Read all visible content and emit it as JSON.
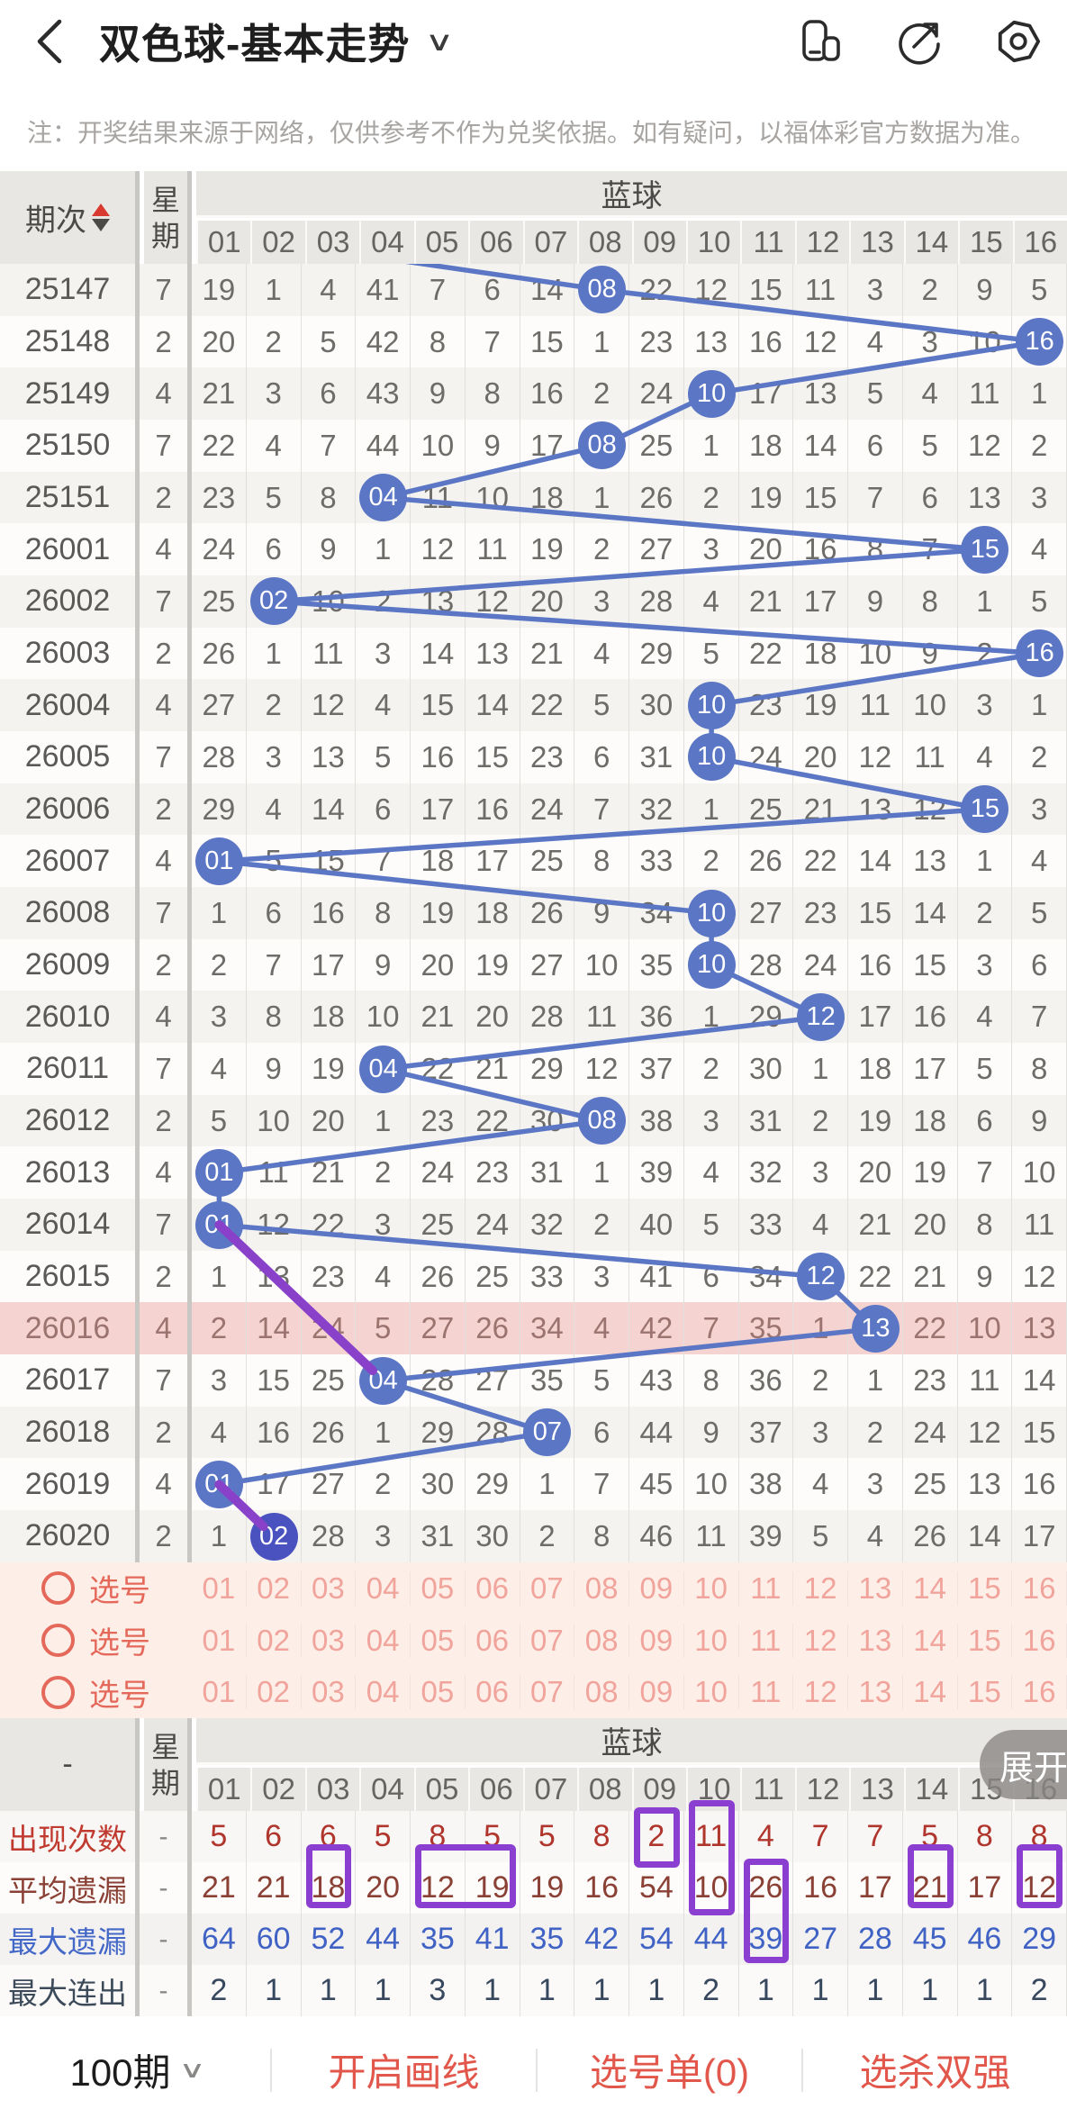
{
  "header": {
    "back": "back",
    "title": "双色球-基本走势",
    "dropdown": "∨",
    "icons": [
      "floating-window-icon",
      "share-icon",
      "record-icon"
    ]
  },
  "notice": "注：开奖结果来源于网络，仅供参考不作为兑奖依据。如有疑问，以福体彩官方数据为准。",
  "table": {
    "period_header": "期次",
    "week_header": "星期",
    "blue_header": "蓝球",
    "ball_columns": [
      "01",
      "02",
      "03",
      "04",
      "05",
      "06",
      "07",
      "08",
      "09",
      "10",
      "11",
      "12",
      "13",
      "14",
      "15",
      "16"
    ],
    "rows": [
      {
        "period": "25147",
        "week": "7",
        "ball_col": 8,
        "cells": [
          "19",
          "1",
          "4",
          "41",
          "7",
          "6",
          "14",
          "08",
          "22",
          "12",
          "15",
          "11",
          "3",
          "2",
          "9",
          "5"
        ]
      },
      {
        "period": "25148",
        "week": "2",
        "ball_col": 16,
        "cells": [
          "20",
          "2",
          "5",
          "42",
          "8",
          "7",
          "15",
          "1",
          "23",
          "13",
          "16",
          "12",
          "4",
          "3",
          "10",
          "16"
        ]
      },
      {
        "period": "25149",
        "week": "4",
        "ball_col": 10,
        "cells": [
          "21",
          "3",
          "6",
          "43",
          "9",
          "8",
          "16",
          "2",
          "24",
          "10",
          "17",
          "13",
          "5",
          "4",
          "11",
          "1"
        ]
      },
      {
        "period": "25150",
        "week": "7",
        "ball_col": 8,
        "cells": [
          "22",
          "4",
          "7",
          "44",
          "10",
          "9",
          "17",
          "08",
          "25",
          "1",
          "18",
          "14",
          "6",
          "5",
          "12",
          "2"
        ]
      },
      {
        "period": "25151",
        "week": "2",
        "ball_col": 4,
        "cells": [
          "23",
          "5",
          "8",
          "04",
          "11",
          "10",
          "18",
          "1",
          "26",
          "2",
          "19",
          "15",
          "7",
          "6",
          "13",
          "3"
        ]
      },
      {
        "period": "26001",
        "week": "4",
        "ball_col": 15,
        "cells": [
          "24",
          "6",
          "9",
          "1",
          "12",
          "11",
          "19",
          "2",
          "27",
          "3",
          "20",
          "16",
          "8",
          "7",
          "15",
          "4"
        ]
      },
      {
        "period": "26002",
        "week": "7",
        "ball_col": 2,
        "cells": [
          "25",
          "02",
          "10",
          "2",
          "13",
          "12",
          "20",
          "3",
          "28",
          "4",
          "21",
          "17",
          "9",
          "8",
          "1",
          "5"
        ]
      },
      {
        "period": "26003",
        "week": "2",
        "ball_col": 16,
        "cells": [
          "26",
          "1",
          "11",
          "3",
          "14",
          "13",
          "21",
          "4",
          "29",
          "5",
          "22",
          "18",
          "10",
          "9",
          "2",
          "16"
        ]
      },
      {
        "period": "26004",
        "week": "4",
        "ball_col": 10,
        "cells": [
          "27",
          "2",
          "12",
          "4",
          "15",
          "14",
          "22",
          "5",
          "30",
          "10",
          "23",
          "19",
          "11",
          "10",
          "3",
          "1"
        ]
      },
      {
        "period": "26005",
        "week": "7",
        "ball_col": 10,
        "cells": [
          "28",
          "3",
          "13",
          "5",
          "16",
          "15",
          "23",
          "6",
          "31",
          "10",
          "24",
          "20",
          "12",
          "11",
          "4",
          "2"
        ]
      },
      {
        "period": "26006",
        "week": "2",
        "ball_col": 15,
        "cells": [
          "29",
          "4",
          "14",
          "6",
          "17",
          "16",
          "24",
          "7",
          "32",
          "1",
          "25",
          "21",
          "13",
          "12",
          "15",
          "3"
        ]
      },
      {
        "period": "26007",
        "week": "4",
        "ball_col": 1,
        "cells": [
          "01",
          "5",
          "15",
          "7",
          "18",
          "17",
          "25",
          "8",
          "33",
          "2",
          "26",
          "22",
          "14",
          "13",
          "1",
          "4"
        ]
      },
      {
        "period": "26008",
        "week": "7",
        "ball_col": 10,
        "cells": [
          "1",
          "6",
          "16",
          "8",
          "19",
          "18",
          "26",
          "9",
          "34",
          "10",
          "27",
          "23",
          "15",
          "14",
          "2",
          "5"
        ]
      },
      {
        "period": "26009",
        "week": "2",
        "ball_col": 10,
        "cells": [
          "2",
          "7",
          "17",
          "9",
          "20",
          "19",
          "27",
          "10",
          "35",
          "10",
          "28",
          "24",
          "16",
          "15",
          "3",
          "6"
        ]
      },
      {
        "period": "26010",
        "week": "4",
        "ball_col": 12,
        "cells": [
          "3",
          "8",
          "18",
          "10",
          "21",
          "20",
          "28",
          "11",
          "36",
          "1",
          "29",
          "12",
          "17",
          "16",
          "4",
          "7"
        ]
      },
      {
        "period": "26011",
        "week": "7",
        "ball_col": 4,
        "cells": [
          "4",
          "9",
          "19",
          "04",
          "22",
          "21",
          "29",
          "12",
          "37",
          "2",
          "30",
          "1",
          "18",
          "17",
          "5",
          "8"
        ]
      },
      {
        "period": "26012",
        "week": "2",
        "ball_col": 8,
        "cells": [
          "5",
          "10",
          "20",
          "1",
          "23",
          "22",
          "30",
          "08",
          "38",
          "3",
          "31",
          "2",
          "19",
          "18",
          "6",
          "9"
        ]
      },
      {
        "period": "26013",
        "week": "4",
        "ball_col": 1,
        "cells": [
          "01",
          "11",
          "21",
          "2",
          "24",
          "23",
          "31",
          "1",
          "39",
          "4",
          "32",
          "3",
          "20",
          "19",
          "7",
          "10"
        ]
      },
      {
        "period": "26014",
        "week": "7",
        "ball_col": 1,
        "cells": [
          "01",
          "12",
          "22",
          "3",
          "25",
          "24",
          "32",
          "2",
          "40",
          "5",
          "33",
          "4",
          "21",
          "20",
          "8",
          "11"
        ]
      },
      {
        "period": "26015",
        "week": "2",
        "ball_col": 12,
        "cells": [
          "1",
          "13",
          "23",
          "4",
          "26",
          "25",
          "33",
          "3",
          "41",
          "6",
          "34",
          "12",
          "22",
          "21",
          "9",
          "12"
        ]
      },
      {
        "period": "26016",
        "week": "4",
        "ball_col": 13,
        "highlight": true,
        "cells": [
          "2",
          "14",
          "24",
          "5",
          "27",
          "26",
          "34",
          "4",
          "42",
          "7",
          "35",
          "1",
          "13",
          "22",
          "10",
          "13"
        ]
      },
      {
        "period": "26017",
        "week": "7",
        "ball_col": 4,
        "cells": [
          "3",
          "15",
          "25",
          "04",
          "28",
          "27",
          "35",
          "5",
          "43",
          "8",
          "36",
          "2",
          "1",
          "23",
          "11",
          "14"
        ]
      },
      {
        "period": "26018",
        "week": "2",
        "ball_col": 7,
        "cells": [
          "4",
          "16",
          "26",
          "1",
          "29",
          "28",
          "07",
          "6",
          "44",
          "9",
          "37",
          "3",
          "2",
          "24",
          "12",
          "15"
        ]
      },
      {
        "period": "26019",
        "week": "4",
        "ball_col": 1,
        "cells": [
          "01",
          "17",
          "27",
          "2",
          "30",
          "29",
          "1",
          "7",
          "45",
          "10",
          "38",
          "4",
          "3",
          "25",
          "13",
          "16"
        ]
      },
      {
        "period": "26020",
        "week": "2",
        "ball_col": 2,
        "ball_variant": "indigo",
        "cells": [
          "1",
          "02",
          "28",
          "3",
          "31",
          "30",
          "2",
          "8",
          "46",
          "11",
          "39",
          "5",
          "4",
          "26",
          "14",
          "17"
        ]
      }
    ],
    "drawn_lines": [
      {
        "from": "26014",
        "to": "26017"
      },
      {
        "from": "26019",
        "to": "26020"
      }
    ],
    "pick_rows": [
      {
        "label": "选号"
      },
      {
        "label": "选号"
      },
      {
        "label": "选号"
      }
    ],
    "pick_numbers": [
      "01",
      "02",
      "03",
      "04",
      "05",
      "06",
      "07",
      "08",
      "09",
      "10",
      "11",
      "12",
      "13",
      "14",
      "15",
      "16"
    ]
  },
  "summary": {
    "period_header": "-",
    "week_header": "星期",
    "blue_header": "蓝球",
    "ball_columns": [
      "01",
      "02",
      "03",
      "04",
      "05",
      "06",
      "07",
      "08",
      "09",
      "10",
      "11",
      "12",
      "13",
      "14",
      "15",
      "16"
    ],
    "rows": [
      {
        "key": "appear",
        "label": "出现次数",
        "week": "-",
        "color": "#b0352c",
        "label_color": "#c03a30",
        "values": [
          "5",
          "6",
          "6",
          "5",
          "8",
          "5",
          "5",
          "8",
          "2",
          "11",
          "4",
          "7",
          "7",
          "5",
          "8",
          "8"
        ]
      },
      {
        "key": "avg_miss",
        "label": "平均遗漏",
        "week": "-",
        "color": "#8a4034",
        "label_color": "#8a4034",
        "values": [
          "21",
          "21",
          "18",
          "20",
          "12",
          "19",
          "19",
          "16",
          "54",
          "10",
          "26",
          "16",
          "17",
          "21",
          "17",
          "12"
        ]
      },
      {
        "key": "max_miss",
        "label": "最大遗漏",
        "week": "-",
        "color": "#3f62c4",
        "label_color": "#4468c8",
        "values": [
          "64",
          "60",
          "52",
          "44",
          "35",
          "41",
          "35",
          "42",
          "54",
          "44",
          "39",
          "27",
          "28",
          "45",
          "46",
          "29"
        ]
      },
      {
        "key": "max_consec",
        "label": "最大连出",
        "week": "-",
        "color": "#37475d",
        "label_color": "#3c4a5a",
        "values": [
          "2",
          "1",
          "1",
          "1",
          "3",
          "1",
          "1",
          "1",
          "1",
          "2",
          "1",
          "1",
          "1",
          "1",
          "1",
          "2"
        ]
      }
    ],
    "highlights": [
      {
        "col": 9,
        "span": "appear"
      },
      {
        "col": 10,
        "span": "appear-avg"
      },
      {
        "col": 3,
        "span": "avg"
      },
      {
        "col": 5,
        "col_end": 6,
        "span": "avg"
      },
      {
        "col": 11,
        "span": "avg-max"
      },
      {
        "col": 14,
        "span": "avg"
      },
      {
        "col": 16,
        "span": "avg"
      }
    ]
  },
  "expand_button": "展开",
  "bottom_bar": {
    "period_count": "100期",
    "chevron": "∨",
    "draw_line": "开启画线",
    "pick_list": "选号单(0)",
    "kill_double": "选杀双强"
  },
  "colors": {
    "ball_blue": "#5b76c4",
    "ball_indigo": "#4a52c0",
    "trend_line": "#5b76c4",
    "drawn_line": "#8a41c9",
    "highlight_row_bg": "#f5d3d1",
    "pick_row_bg": "#fdeee8",
    "purple_box": "#8b3fd0",
    "bottom_red": "#e2574b",
    "row_even_bg": "#f4f3f0",
    "row_odd_bg": "#fdfcfa"
  }
}
